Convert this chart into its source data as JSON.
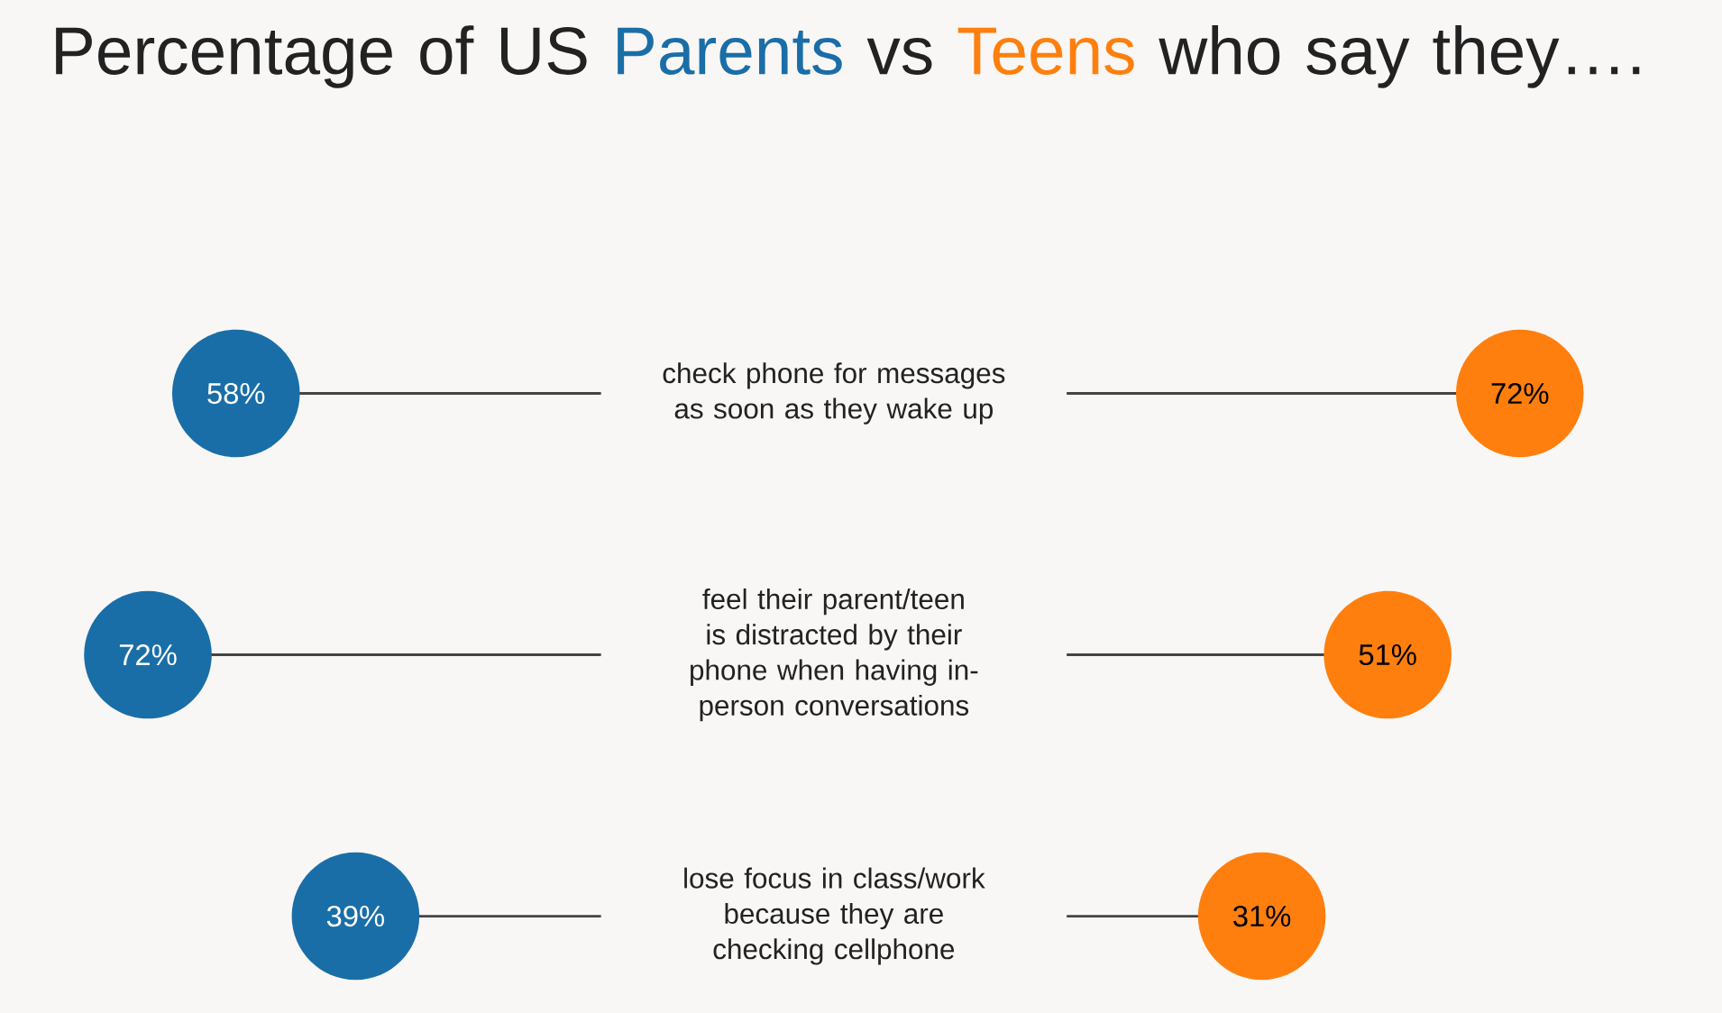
{
  "chart_data": {
    "type": "other",
    "title": "Percentage of US",
    "annotations": [
      "vs",
      "who say they…."
    ],
    "categories": [
      "check phone for messages as soon as they wake up",
      "feel their parent/teen is distracted by their phone when having in-person conversations",
      "lose focus in class/work because they are checking cellphone"
    ],
    "series": [
      {
        "name": "Parents",
        "color": "#1a6ea8",
        "values": [
          58,
          72,
          39
        ],
        "value_labels": [
          "58%",
          "72%",
          "39%"
        ]
      },
      {
        "name": "Teens",
        "color": "#ff7f0e",
        "values": [
          72,
          51,
          31
        ],
        "value_labels": [
          "72%",
          "51%",
          "31%"
        ]
      }
    ]
  }
}
